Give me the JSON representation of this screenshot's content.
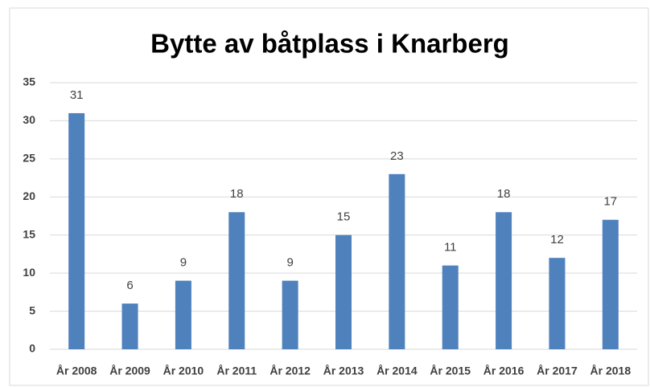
{
  "chart_data": {
    "type": "bar",
    "title": "Bytte av båtplass i Knarberg",
    "categories": [
      "År 2008",
      "År 2009",
      "År 2010",
      "År 2011",
      "År 2012",
      "År 2013",
      "År 2014",
      "År 2015",
      "År 2016",
      "År 2017",
      "År 2018"
    ],
    "values": [
      31,
      6,
      9,
      18,
      9,
      15,
      23,
      11,
      18,
      12,
      17
    ],
    "color": "#4f81bd",
    "ylim": [
      0,
      35
    ],
    "yticks": [
      0,
      5,
      10,
      15,
      20,
      25,
      30,
      35
    ],
    "grid": true
  }
}
